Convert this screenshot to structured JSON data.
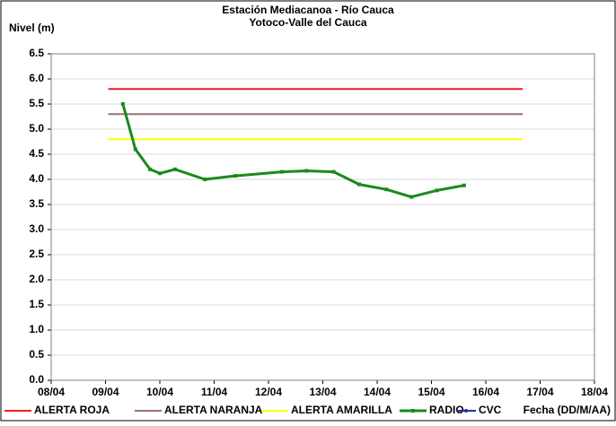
{
  "chart_data": {
    "type": "line",
    "title": "Estación Mediacanoa - Río Cauca",
    "subtitle": "Yotoco-Valle del Cauca",
    "y_label": "Nivel (m)",
    "x_label": "Fecha (DD/M/AA)",
    "xlim": [
      8,
      18
    ],
    "xticks": [
      {
        "value": 8,
        "label": "08/04"
      },
      {
        "value": 9,
        "label": "09/04"
      },
      {
        "value": 10,
        "label": "10/04"
      },
      {
        "value": 11,
        "label": "11/04"
      },
      {
        "value": 12,
        "label": "12/04"
      },
      {
        "value": 13,
        "label": "13/04"
      },
      {
        "value": 14,
        "label": "14/04"
      },
      {
        "value": 15,
        "label": "15/04"
      },
      {
        "value": 16,
        "label": "16/04"
      },
      {
        "value": 17,
        "label": "17/04"
      },
      {
        "value": 18,
        "label": "18/04"
      }
    ],
    "ylim": [
      0,
      6.5
    ],
    "yticks": [
      {
        "value": 0,
        "label": "0.0"
      },
      {
        "value": 0.5,
        "label": "0.5"
      },
      {
        "value": 1,
        "label": "1.0"
      },
      {
        "value": 1.5,
        "label": "1.5"
      },
      {
        "value": 2,
        "label": "2.0"
      },
      {
        "value": 2.5,
        "label": "2.5"
      },
      {
        "value": 3,
        "label": "3.0"
      },
      {
        "value": 3.5,
        "label": "3.5"
      },
      {
        "value": 4,
        "label": "4.0"
      },
      {
        "value": 4.5,
        "label": "4.5"
      },
      {
        "value": 5,
        "label": "5.0"
      },
      {
        "value": 5.5,
        "label": "5.5"
      },
      {
        "value": 6,
        "label": "6.0"
      },
      {
        "value": 6.5,
        "label": "6.5"
      }
    ],
    "grid": true,
    "legend": "bottom",
    "series": [
      {
        "name": "ALERTA ROJA",
        "color": "#ee1c25",
        "x": [
          9.05,
          16.68
        ],
        "values": [
          5.8,
          5.8
        ]
      },
      {
        "name": "ALERTA NARANJA",
        "color": "#9e7070",
        "x": [
          9.05,
          16.68
        ],
        "values": [
          5.3,
          5.3
        ]
      },
      {
        "name": "ALERTA AMARILLA",
        "color": "#ffff00",
        "x": [
          9.05,
          16.68
        ],
        "values": [
          4.8,
          4.8
        ]
      },
      {
        "name": "RADIO",
        "color": "#1a8a1a",
        "marker": "square",
        "x": [
          9.32,
          9.55,
          9.82,
          10.0,
          10.28,
          10.83,
          11.39,
          12.25,
          12.7,
          13.2,
          13.67,
          14.17,
          14.63,
          15.1,
          15.6
        ],
        "values": [
          5.5,
          4.6,
          4.2,
          4.12,
          4.2,
          4.0,
          4.07,
          4.15,
          4.17,
          4.15,
          3.9,
          3.8,
          3.65,
          3.78,
          3.88
        ]
      },
      {
        "name": "CVC",
        "color": "#1f2fa0",
        "marker": "dot",
        "x": [],
        "values": []
      }
    ]
  }
}
